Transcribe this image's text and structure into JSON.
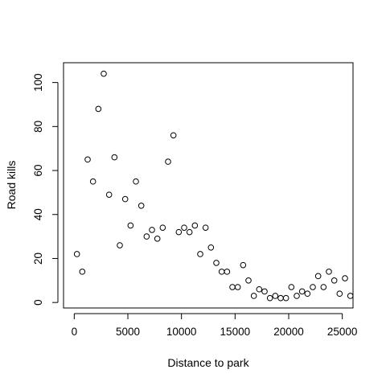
{
  "chart_data": {
    "type": "scatter",
    "title": "",
    "xlabel": "Distance to park",
    "ylabel": "Road kills",
    "xlim": [
      -1000,
      26000
    ],
    "ylim": [
      -2.5,
      109
    ],
    "x_ticks": [
      0,
      5000,
      10000,
      15000,
      20000,
      25000
    ],
    "y_ticks": [
      0,
      20,
      40,
      60,
      80,
      100
    ],
    "x_tick_labels": [
      "0",
      "5000",
      "10000",
      "15000",
      "20000",
      "25000"
    ],
    "y_tick_labels": [
      "0",
      "20",
      "40",
      "60",
      "80",
      "100"
    ],
    "grid": false,
    "legend": "none",
    "marker": "open-circle",
    "colors": {
      "points": "#000000",
      "axes": "#000000",
      "background": "#ffffff"
    },
    "points": [
      {
        "x": 250,
        "y": 22
      },
      {
        "x": 750,
        "y": 14
      },
      {
        "x": 1250,
        "y": 65
      },
      {
        "x": 1750,
        "y": 55
      },
      {
        "x": 2250,
        "y": 88
      },
      {
        "x": 2750,
        "y": 104
      },
      {
        "x": 3250,
        "y": 49
      },
      {
        "x": 3750,
        "y": 66
      },
      {
        "x": 4250,
        "y": 26
      },
      {
        "x": 4750,
        "y": 47
      },
      {
        "x": 5250,
        "y": 35
      },
      {
        "x": 5750,
        "y": 55
      },
      {
        "x": 6250,
        "y": 44
      },
      {
        "x": 6750,
        "y": 30
      },
      {
        "x": 7250,
        "y": 33
      },
      {
        "x": 7750,
        "y": 29
      },
      {
        "x": 8250,
        "y": 34
      },
      {
        "x": 8750,
        "y": 64
      },
      {
        "x": 9250,
        "y": 76
      },
      {
        "x": 9750,
        "y": 32
      },
      {
        "x": 10250,
        "y": 34
      },
      {
        "x": 10750,
        "y": 32
      },
      {
        "x": 11250,
        "y": 35
      },
      {
        "x": 11750,
        "y": 22
      },
      {
        "x": 12250,
        "y": 34
      },
      {
        "x": 12750,
        "y": 25
      },
      {
        "x": 13250,
        "y": 18
      },
      {
        "x": 13750,
        "y": 14
      },
      {
        "x": 14250,
        "y": 14
      },
      {
        "x": 14750,
        "y": 7
      },
      {
        "x": 15250,
        "y": 7
      },
      {
        "x": 15750,
        "y": 17
      },
      {
        "x": 16250,
        "y": 10
      },
      {
        "x": 16750,
        "y": 3
      },
      {
        "x": 17250,
        "y": 6
      },
      {
        "x": 17750,
        "y": 5
      },
      {
        "x": 18250,
        "y": 2
      },
      {
        "x": 18750,
        "y": 3
      },
      {
        "x": 19250,
        "y": 2
      },
      {
        "x": 19750,
        "y": 2
      },
      {
        "x": 20250,
        "y": 7
      },
      {
        "x": 20750,
        "y": 3
      },
      {
        "x": 21250,
        "y": 5
      },
      {
        "x": 21750,
        "y": 4
      },
      {
        "x": 22250,
        "y": 7
      },
      {
        "x": 22750,
        "y": 12
      },
      {
        "x": 23250,
        "y": 7
      },
      {
        "x": 23750,
        "y": 14
      },
      {
        "x": 24250,
        "y": 10
      },
      {
        "x": 24750,
        "y": 4
      },
      {
        "x": 25250,
        "y": 11
      },
      {
        "x": 25750,
        "y": 3
      }
    ]
  }
}
